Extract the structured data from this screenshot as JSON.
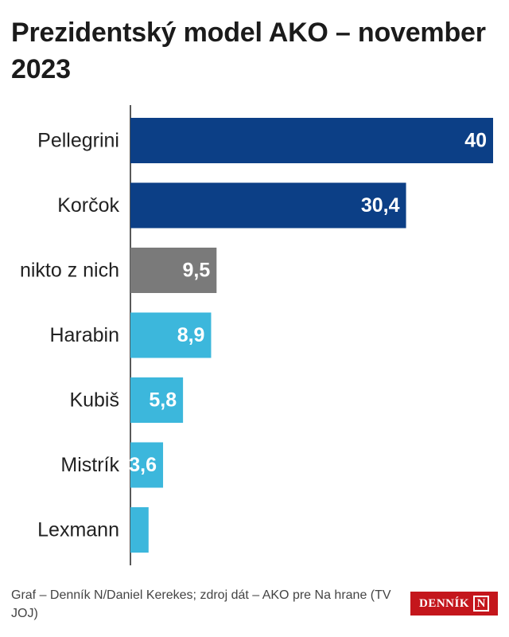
{
  "title": "Prezidentský model AKO – november 2023",
  "chart_data": {
    "type": "bar",
    "orientation": "horizontal",
    "categories": [
      "Pellegrini",
      "Korčok",
      "nikto z nich",
      "Harabin",
      "Kubiš",
      "Mistrík",
      "Lexmann"
    ],
    "values": [
      40,
      30.4,
      9.5,
      8.9,
      5.8,
      3.6,
      2
    ],
    "value_labels": [
      "40",
      "30,4",
      "9,5",
      "8,9",
      "5,8",
      "3,6",
      ""
    ],
    "colors": [
      "#0c3f86",
      "#0c3f86",
      "#7a7a7a",
      "#3cb7dc",
      "#3cb7dc",
      "#3cb7dc",
      "#3cb7dc"
    ],
    "xlim": [
      0,
      40
    ],
    "grid": false,
    "legend": "none"
  },
  "footer": {
    "source": "Graf – Denník N/Daniel Kerekes; zdroj dát – AKO pre Na hrane (TV JOJ)"
  },
  "logo": {
    "text": "DENNÍK",
    "letter": "N",
    "color": "#c4161c"
  }
}
